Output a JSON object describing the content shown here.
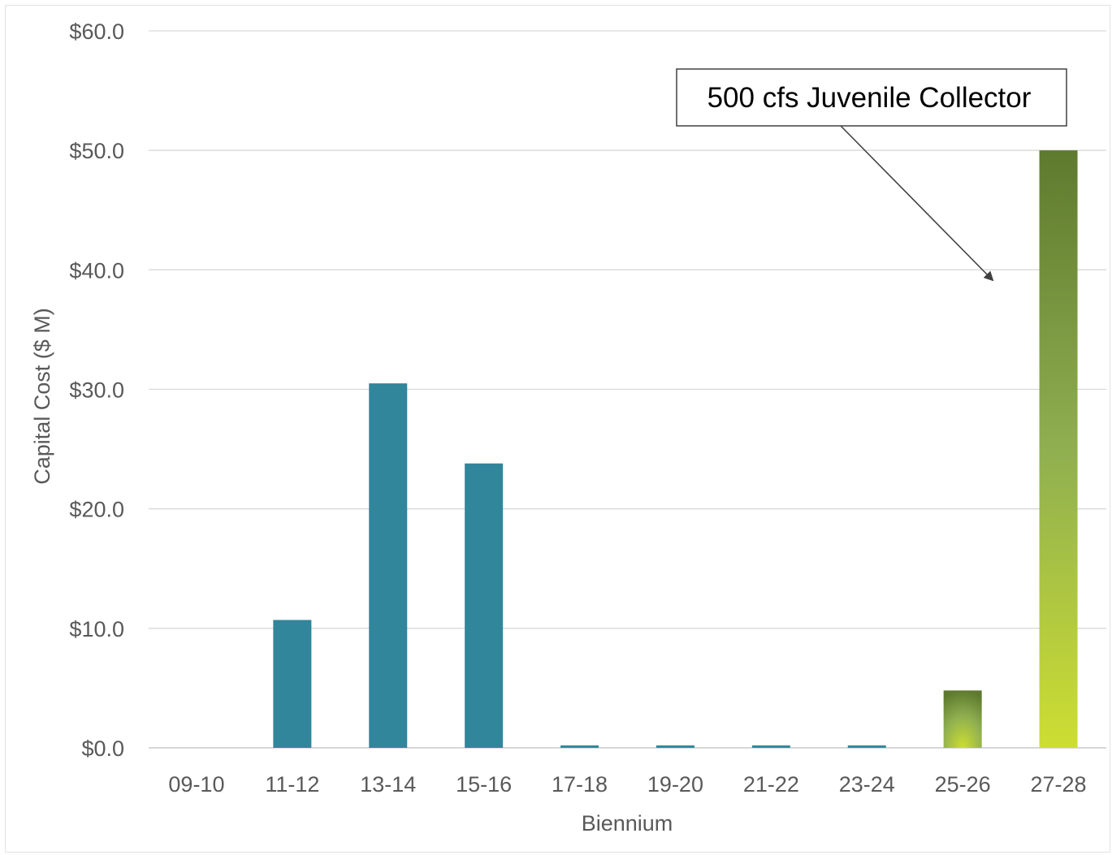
{
  "chart_data": {
    "type": "bar",
    "title": "",
    "xlabel": "Biennium",
    "ylabel": "Capital Cost ($ M)",
    "ylim": [
      0,
      60
    ],
    "yticks": [
      0,
      10,
      20,
      30,
      40,
      50,
      60
    ],
    "ytick_labels": [
      "$0.0",
      "$10.0",
      "$20.0",
      "$30.0",
      "$40.0",
      "$50.0",
      "$60.0"
    ],
    "categories": [
      "09-10",
      "11-12",
      "13-14",
      "15-16",
      "17-18",
      "19-20",
      "21-22",
      "23-24",
      "25-26",
      "27-28"
    ],
    "values": [
      0,
      10.7,
      30.5,
      23.8,
      0.2,
      0.2,
      0.2,
      0.2,
      4.8,
      50.0
    ],
    "bar_styles": [
      "teal",
      "teal",
      "teal",
      "teal",
      "teal",
      "teal",
      "teal",
      "teal",
      "green-radial",
      "green-gradient"
    ],
    "grid": true,
    "legend": "none",
    "annotation": {
      "text": "500 cfs Juvenile Collector",
      "target_category": "27-28"
    },
    "colors": {
      "teal": "#31869B",
      "green_top": "#5E7A2E",
      "green_mid": "#8FAF50",
      "green_bottom": "#CDDE32",
      "grid": "#d9d9d9",
      "text": "#595959"
    }
  }
}
